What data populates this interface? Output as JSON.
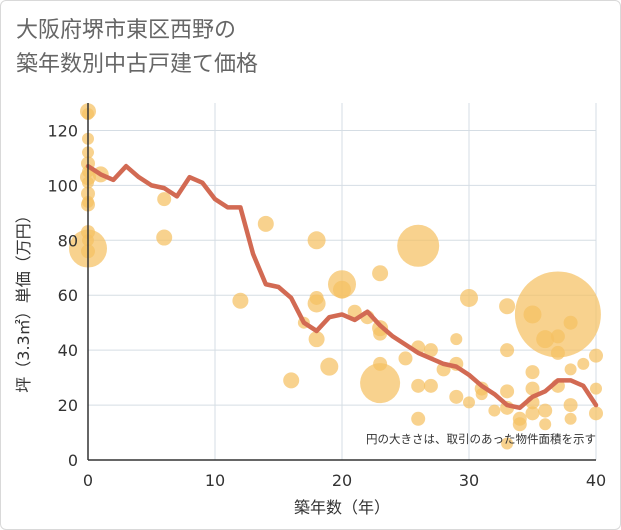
{
  "chart_data": {
    "type": "scatter",
    "title_lines": [
      "大阪府堺市東区西野の",
      "築年数別中古戸建て価格"
    ],
    "xlabel": "築年数（年）",
    "ylabel": "坪（3.3㎡）単価（万円）",
    "annotation": "円の大きさは、取引のあった物件面積を示す",
    "xlim": [
      0,
      40
    ],
    "ylim": [
      0,
      130
    ],
    "xticks": [
      0,
      10,
      20,
      30,
      40
    ],
    "yticks": [
      0,
      20,
      40,
      60,
      80,
      100,
      120
    ],
    "grid": true,
    "colors": {
      "bubble": "#f5c063",
      "line": "#d26a53",
      "grid": "#d5dde4",
      "axis": "#333333"
    },
    "bubbles": [
      {
        "x": 0,
        "y": 127,
        "r": 8
      },
      {
        "x": 0,
        "y": 126,
        "r": 6
      },
      {
        "x": 0,
        "y": 117,
        "r": 6
      },
      {
        "x": 0,
        "y": 112,
        "r": 6
      },
      {
        "x": 0,
        "y": 108,
        "r": 7
      },
      {
        "x": 0,
        "y": 105,
        "r": 6
      },
      {
        "x": 0,
        "y": 103,
        "r": 8
      },
      {
        "x": 0,
        "y": 101,
        "r": 6
      },
      {
        "x": 0,
        "y": 97,
        "r": 7
      },
      {
        "x": 0,
        "y": 94,
        "r": 6
      },
      {
        "x": 0,
        "y": 93,
        "r": 7
      },
      {
        "x": 0,
        "y": 83,
        "r": 7
      },
      {
        "x": 0,
        "y": 80,
        "r": 6
      },
      {
        "x": 0,
        "y": 77,
        "r": 19
      },
      {
        "x": 0,
        "y": 76,
        "r": 7
      },
      {
        "x": 1,
        "y": 104,
        "r": 8
      },
      {
        "x": 6,
        "y": 95,
        "r": 7
      },
      {
        "x": 6,
        "y": 81,
        "r": 8
      },
      {
        "x": 12,
        "y": 58,
        "r": 8
      },
      {
        "x": 14,
        "y": 86,
        "r": 8
      },
      {
        "x": 16,
        "y": 29,
        "r": 8
      },
      {
        "x": 17,
        "y": 50,
        "r": 6
      },
      {
        "x": 18,
        "y": 80,
        "r": 9
      },
      {
        "x": 18,
        "y": 59,
        "r": 7
      },
      {
        "x": 18,
        "y": 57,
        "r": 9
      },
      {
        "x": 18,
        "y": 44,
        "r": 8
      },
      {
        "x": 19,
        "y": 34,
        "r": 9
      },
      {
        "x": 20,
        "y": 64,
        "r": 14
      },
      {
        "x": 20,
        "y": 62,
        "r": 9
      },
      {
        "x": 21,
        "y": 54,
        "r": 7
      },
      {
        "x": 22,
        "y": 52,
        "r": 7
      },
      {
        "x": 23,
        "y": 68,
        "r": 8
      },
      {
        "x": 23,
        "y": 48,
        "r": 8
      },
      {
        "x": 23,
        "y": 46,
        "r": 7
      },
      {
        "x": 23,
        "y": 35,
        "r": 7
      },
      {
        "x": 23,
        "y": 28,
        "r": 20
      },
      {
        "x": 25,
        "y": 37,
        "r": 7
      },
      {
        "x": 26,
        "y": 78,
        "r": 21
      },
      {
        "x": 26,
        "y": 41,
        "r": 7
      },
      {
        "x": 26,
        "y": 27,
        "r": 7
      },
      {
        "x": 26,
        "y": 15,
        "r": 7
      },
      {
        "x": 27,
        "y": 40,
        "r": 7
      },
      {
        "x": 27,
        "y": 27,
        "r": 7
      },
      {
        "x": 28,
        "y": 33,
        "r": 7
      },
      {
        "x": 29,
        "y": 44,
        "r": 6
      },
      {
        "x": 29,
        "y": 35,
        "r": 7
      },
      {
        "x": 29,
        "y": 23,
        "r": 7
      },
      {
        "x": 30,
        "y": 59,
        "r": 9
      },
      {
        "x": 30,
        "y": 21,
        "r": 6
      },
      {
        "x": 31,
        "y": 26,
        "r": 7
      },
      {
        "x": 31,
        "y": 24,
        "r": 6
      },
      {
        "x": 32,
        "y": 18,
        "r": 6
      },
      {
        "x": 33,
        "y": 56,
        "r": 8
      },
      {
        "x": 33,
        "y": 40,
        "r": 7
      },
      {
        "x": 33,
        "y": 25,
        "r": 7
      },
      {
        "x": 33,
        "y": 19,
        "r": 7
      },
      {
        "x": 33,
        "y": 6,
        "r": 6
      },
      {
        "x": 34,
        "y": 15,
        "r": 7
      },
      {
        "x": 34,
        "y": 13,
        "r": 7
      },
      {
        "x": 35,
        "y": 53,
        "r": 9
      },
      {
        "x": 35,
        "y": 32,
        "r": 7
      },
      {
        "x": 35,
        "y": 26,
        "r": 7
      },
      {
        "x": 35,
        "y": 21,
        "r": 7
      },
      {
        "x": 35,
        "y": 17,
        "r": 7
      },
      {
        "x": 36,
        "y": 44,
        "r": 9
      },
      {
        "x": 36,
        "y": 18,
        "r": 7
      },
      {
        "x": 36,
        "y": 13,
        "r": 6
      },
      {
        "x": 37,
        "y": 53,
        "r": 43
      },
      {
        "x": 37,
        "y": 45,
        "r": 7
      },
      {
        "x": 37,
        "y": 39,
        "r": 7
      },
      {
        "x": 37,
        "y": 27,
        "r": 7
      },
      {
        "x": 38,
        "y": 50,
        "r": 7
      },
      {
        "x": 38,
        "y": 33,
        "r": 6
      },
      {
        "x": 38,
        "y": 20,
        "r": 7
      },
      {
        "x": 38,
        "y": 15,
        "r": 6
      },
      {
        "x": 39,
        "y": 35,
        "r": 6
      },
      {
        "x": 40,
        "y": 38,
        "r": 7
      },
      {
        "x": 40,
        "y": 26,
        "r": 6
      },
      {
        "x": 40,
        "y": 17,
        "r": 7
      }
    ],
    "trend": {
      "x": [
        0,
        1,
        2,
        3,
        4,
        5,
        6,
        7,
        8,
        9,
        10,
        11,
        12,
        13,
        14,
        15,
        16,
        17,
        18,
        19,
        20,
        21,
        22,
        23,
        24,
        25,
        26,
        27,
        28,
        29,
        30,
        31,
        32,
        33,
        34,
        35,
        36,
        37,
        38,
        39,
        40
      ],
      "y": [
        107,
        104,
        102,
        107,
        103,
        100,
        99,
        96,
        103,
        101,
        95,
        92,
        92,
        75,
        64,
        63,
        59,
        50,
        47,
        52,
        53,
        51,
        54,
        49,
        45,
        42,
        39,
        37,
        35,
        34,
        31,
        27,
        24,
        20,
        19,
        23,
        25,
        29,
        29,
        27,
        20
      ]
    }
  }
}
